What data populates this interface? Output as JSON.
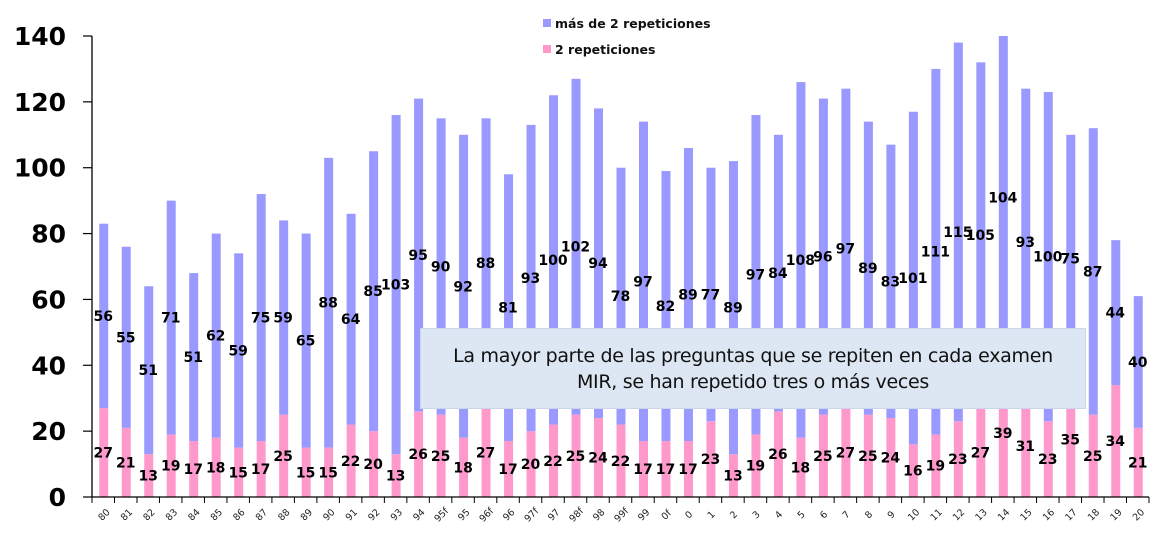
{
  "chart_data": {
    "type": "bar",
    "stacked": true,
    "title": "",
    "xlabel": "",
    "ylabel": "",
    "ylim": [
      0,
      140
    ],
    "yticks": [
      0,
      20,
      40,
      60,
      80,
      100,
      120,
      140
    ],
    "grid": false,
    "legend_position": "top-center",
    "categories": [
      "80",
      "81",
      "82",
      "83",
      "84",
      "85",
      "86",
      "87",
      "88",
      "89",
      "90",
      "91",
      "92",
      "93",
      "94",
      "95f",
      "95",
      "96f",
      "96",
      "97f",
      "97",
      "98f",
      "98",
      "99f",
      "99",
      "0f",
      "0",
      "1",
      "2",
      "3",
      "4",
      "5",
      "6",
      "7",
      "8",
      "9",
      "10",
      "11",
      "12",
      "13",
      "14",
      "15",
      "16",
      "17",
      "18",
      "19",
      "20"
    ],
    "series": [
      {
        "name": "2 repeticiones",
        "color": "#ff99cc",
        "values": [
          27,
          21,
          13,
          19,
          17,
          18,
          15,
          17,
          25,
          15,
          15,
          22,
          20,
          13,
          26,
          25,
          18,
          27,
          17,
          20,
          22,
          25,
          24,
          22,
          17,
          17,
          17,
          23,
          13,
          19,
          26,
          18,
          25,
          27,
          25,
          24,
          16,
          19,
          23,
          27,
          39,
          31,
          23,
          35,
          25,
          34,
          21
        ]
      },
      {
        "name": "más de 2 repeticiones",
        "color": "#9999ff",
        "values": [
          56,
          55,
          51,
          71,
          51,
          62,
          59,
          75,
          59,
          65,
          88,
          64,
          85,
          103,
          95,
          90,
          92,
          88,
          81,
          93,
          100,
          102,
          94,
          78,
          97,
          82,
          89,
          77,
          89,
          97,
          84,
          108,
          96,
          97,
          89,
          83,
          101,
          111,
          115,
          105,
          104,
          93,
          100,
          75,
          87,
          44,
          40
        ]
      }
    ],
    "legend": [
      {
        "label": "más de 2 repeticiones",
        "color": "#9999ff"
      },
      {
        "label": "2 repeticiones",
        "color": "#ff99cc"
      }
    ],
    "annotation": {
      "line1": "La mayor parte de las preguntas que se repiten en cada examen",
      "line2": "MIR, se han repetido tres o más veces"
    }
  }
}
